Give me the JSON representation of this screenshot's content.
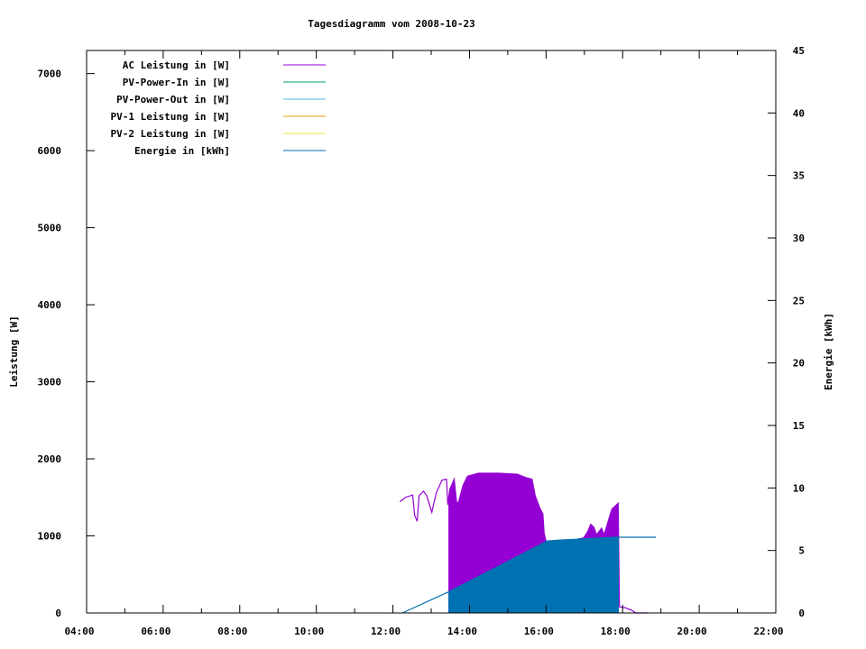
{
  "chart_data": {
    "type": "line",
    "title": "Tagesdiagramm vom 2008-10-23",
    "ylabel": "Leistung [W]",
    "y2label": "Energie [kWh]",
    "xlim": [
      "04:00",
      "22:00"
    ],
    "ylim": [
      0,
      7300
    ],
    "y2lim": [
      0,
      45
    ],
    "xticks": [
      "04:00",
      "06:00",
      "08:00",
      "10:00",
      "12:00",
      "14:00",
      "16:00",
      "18:00",
      "20:00",
      "22:00"
    ],
    "yticks": [
      0,
      1000,
      2000,
      3000,
      4000,
      5000,
      6000,
      7000
    ],
    "y2ticks": [
      0,
      5,
      10,
      15,
      20,
      25,
      30,
      35,
      40,
      45
    ],
    "grid": false,
    "legend_placement": "top-left",
    "oscillating_to_zero": [
      "13:27",
      "17:54"
    ],
    "series": [
      {
        "name": "AC Leistung in [W]",
        "axis": "y",
        "color": "#9400d3",
        "points": [
          [
            "12:11",
            1443
          ],
          [
            "12:20",
            1502
          ],
          [
            "12:31",
            1530
          ],
          [
            "12:34",
            1268
          ],
          [
            "12:38",
            1190
          ],
          [
            "12:41",
            1522
          ],
          [
            "12:48",
            1580
          ],
          [
            "12:53",
            1522
          ],
          [
            "13:01",
            1307
          ],
          [
            "13:08",
            1560
          ],
          [
            "13:17",
            1724
          ],
          [
            "13:24",
            1736
          ],
          [
            "13:26",
            1405
          ],
          [
            "13:29",
            1600
          ],
          [
            "13:36",
            1736
          ],
          [
            "13:40",
            1424
          ],
          [
            "13:43",
            1443
          ],
          [
            "13:50",
            1658
          ],
          [
            "13:57",
            1775
          ],
          [
            "14:14",
            1814
          ],
          [
            "14:46",
            1814
          ],
          [
            "15:15",
            1800
          ],
          [
            "15:29",
            1756
          ],
          [
            "15:38",
            1736
          ],
          [
            "15:43",
            1522
          ],
          [
            "15:50",
            1366
          ],
          [
            "15:55",
            1288
          ],
          [
            "15:57",
            1034
          ],
          [
            "16:00",
            930
          ],
          [
            "16:30",
            920
          ],
          [
            "16:59",
            975
          ],
          [
            "17:05",
            1053
          ],
          [
            "17:10",
            1151
          ],
          [
            "17:15",
            1112
          ],
          [
            "17:19",
            1014
          ],
          [
            "17:27",
            1100
          ],
          [
            "17:31",
            1014
          ],
          [
            "17:38",
            1209
          ],
          [
            "17:43",
            1346
          ],
          [
            "17:53",
            1424
          ],
          [
            "17:55",
            78
          ],
          [
            "18:03",
            70
          ],
          [
            "18:13",
            39
          ],
          [
            "18:21",
            0
          ],
          [
            "18:40",
            0
          ]
        ]
      },
      {
        "name": "PV-Power-In in [W]",
        "axis": "y",
        "color": "#009e73",
        "points": []
      },
      {
        "name": "PV-Power-Out in [W]",
        "axis": "y",
        "color": "#56b4e9",
        "points": []
      },
      {
        "name": "PV-1 Leistung in [W]",
        "axis": "y",
        "color": "#e69f00",
        "points": []
      },
      {
        "name": "PV-2 Leistung in [W]",
        "axis": "y",
        "color": "#f0e442",
        "points": []
      },
      {
        "name": "Energie in [kWh]",
        "axis": "y2",
        "color": "#0072b2",
        "points": [
          [
            "12:15",
            0
          ],
          [
            "13:27",
            1.68
          ],
          [
            "16:00",
            5.7
          ],
          [
            "16:01",
            5.75
          ],
          [
            "16:25",
            5.84
          ],
          [
            "17:00",
            5.93
          ],
          [
            "17:47",
            6.06
          ],
          [
            "18:52",
            6.06
          ]
        ]
      }
    ]
  }
}
